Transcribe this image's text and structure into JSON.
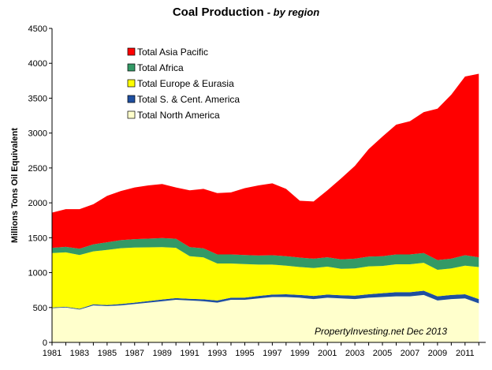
{
  "chart_data": {
    "type": "area",
    "stacked": true,
    "title": "Coal Production",
    "subtitle": "- by region",
    "ylabel": "Millions Tons  Oil Equivalent",
    "xlabel": "",
    "ylim": [
      0,
      4500
    ],
    "yticks": [
      0,
      500,
      1000,
      1500,
      2000,
      2500,
      3000,
      3500,
      4000,
      4500
    ],
    "xlim": [
      1981,
      2012.5
    ],
    "xticks": [
      1981,
      1983,
      1985,
      1987,
      1989,
      1991,
      1993,
      1995,
      1997,
      1999,
      2001,
      2003,
      2005,
      2007,
      2009,
      2011
    ],
    "grid": false,
    "legend_position": "top-left",
    "annotation": "PropertyInvesting.net  Dec 2013",
    "x": [
      1981,
      1982,
      1983,
      1984,
      1985,
      1986,
      1987,
      1988,
      1989,
      1990,
      1991,
      1992,
      1993,
      1994,
      1995,
      1996,
      1997,
      1998,
      1999,
      2000,
      2001,
      2002,
      2003,
      2004,
      2005,
      2006,
      2007,
      2008,
      2009,
      2010,
      2011,
      2012
    ],
    "series": [
      {
        "name": "Total North America",
        "color": "#ffffcc",
        "values": [
          490,
          500,
          470,
          530,
          520,
          530,
          550,
          570,
          590,
          610,
          600,
          590,
          570,
          610,
          610,
          630,
          650,
          650,
          640,
          620,
          640,
          630,
          620,
          640,
          650,
          660,
          660,
          680,
          600,
          620,
          630,
          560
        ]
      },
      {
        "name": "Total S. & Cent. America",
        "color": "#1f4fa0",
        "values": [
          10,
          10,
          12,
          15,
          15,
          20,
          20,
          22,
          25,
          25,
          25,
          28,
          30,
          30,
          32,
          35,
          35,
          40,
          40,
          45,
          45,
          45,
          50,
          50,
          55,
          60,
          60,
          60,
          60,
          60,
          60,
          60
        ]
      },
      {
        "name": "Total Europe & Eurasia",
        "color": "#ffff00",
        "values": [
          780,
          780,
          770,
          760,
          790,
          800,
          790,
          770,
          750,
          720,
          610,
          600,
          530,
          490,
          480,
          450,
          430,
          410,
          400,
          400,
          400,
          380,
          390,
          400,
          390,
          400,
          400,
          400,
          380,
          380,
          410,
          460
        ]
      },
      {
        "name": "Total Africa",
        "color": "#339966",
        "values": [
          75,
          80,
          90,
          100,
          110,
          115,
          120,
          125,
          130,
          130,
          130,
          130,
          130,
          130,
          130,
          130,
          135,
          135,
          135,
          135,
          135,
          135,
          140,
          140,
          140,
          140,
          140,
          140,
          140,
          140,
          150,
          140
        ]
      },
      {
        "name": "Total Asia Pacific",
        "color": "#ff0000",
        "values": [
          505,
          540,
          568,
          575,
          665,
          705,
          740,
          763,
          775,
          735,
          815,
          852,
          880,
          890,
          958,
          1005,
          1030,
          965,
          815,
          820,
          960,
          1160,
          1330,
          1540,
          1715,
          1860,
          1910,
          2020,
          2170,
          2350,
          2560,
          2630
        ]
      }
    ]
  }
}
